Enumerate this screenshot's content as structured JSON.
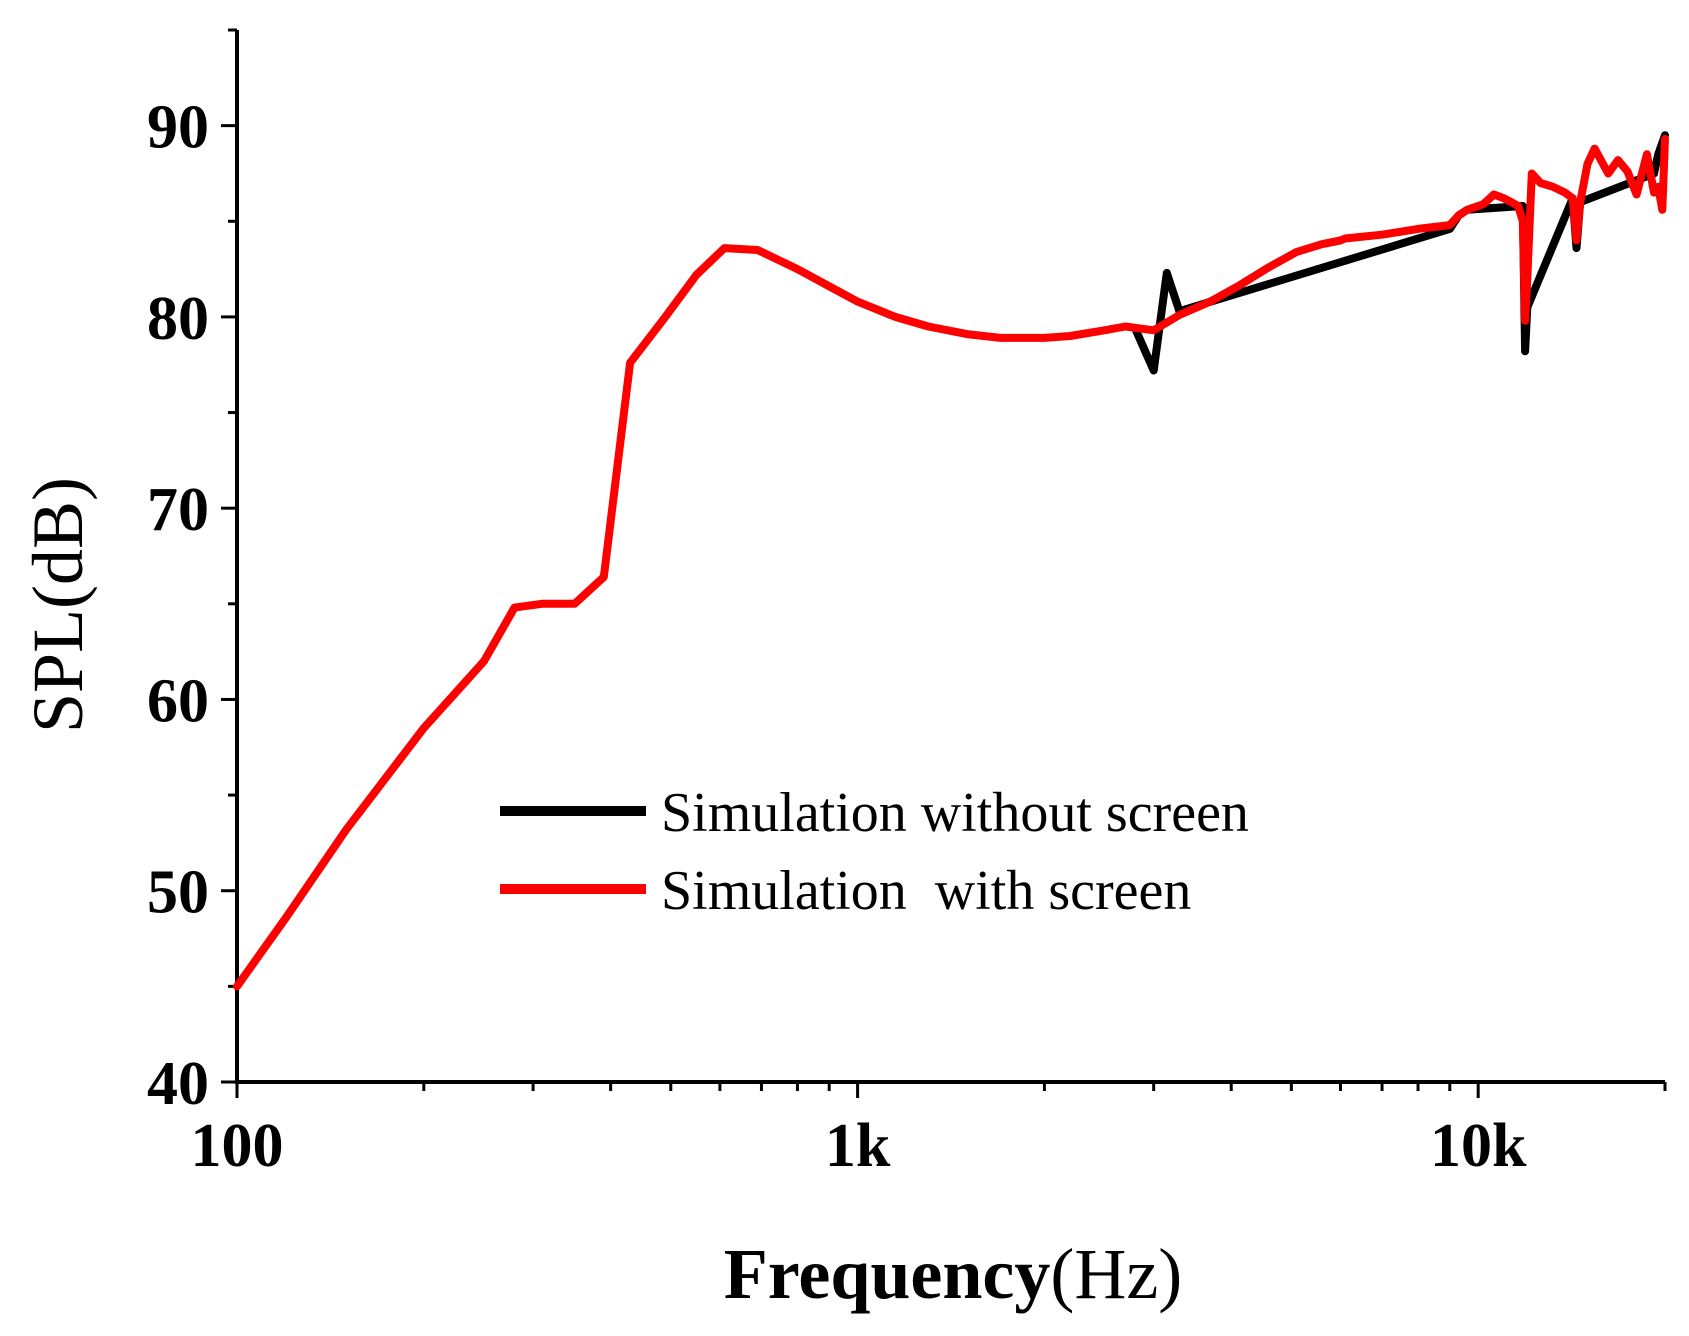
{
  "chart_data": {
    "type": "line",
    "xscale": "log",
    "xlim": [
      100,
      20000
    ],
    "ylim": [
      40,
      95
    ],
    "xlabel_bold": "Frequency",
    "xlabel_unit": "(Hz)",
    "ylabel": "SPL(dB)",
    "x_major_ticks": [
      100,
      1000,
      10000
    ],
    "x_tick_labels": [
      "100",
      "1k",
      "10k"
    ],
    "y_ticks": [
      40,
      50,
      60,
      70,
      80,
      90
    ],
    "y_tick_labels": [
      "40",
      "50",
      "60",
      "70",
      "80",
      "90"
    ],
    "legend_position": "center",
    "series": [
      {
        "name": "Simulation without screen",
        "color": "#000000",
        "x": [
          2800,
          3000,
          3150,
          3300,
          9000,
          9300,
          9600,
          11800,
          11900,
          12000,
          14200,
          14400,
          14600,
          19200,
          19500,
          20000
        ],
        "y": [
          79.4,
          77.2,
          82.3,
          80.3,
          84.6,
          85.3,
          85.6,
          85.8,
          78.2,
          80.5,
          86.2,
          83.6,
          86.0,
          87.5,
          88.5,
          89.5
        ]
      },
      {
        "name": "Simulation  with screen",
        "color": "#ff0000",
        "x": [
          100,
          120,
          150,
          200,
          250,
          280,
          310,
          350,
          390,
          430,
          490,
          550,
          610,
          690,
          800,
          900,
          1000,
          1150,
          1300,
          1500,
          1700,
          2000,
          2200,
          2500,
          2700,
          3000,
          3300,
          3700,
          4100,
          4600,
          5100,
          5600,
          6000,
          6100,
          7000,
          8000,
          9000,
          9300,
          9600,
          10200,
          10600,
          11000,
          11300,
          11600,
          11800,
          11900,
          12000,
          12200,
          12600,
          13200,
          13800,
          14200,
          14400,
          14600,
          15000,
          15400,
          16200,
          16800,
          17400,
          18000,
          18700,
          19200,
          19500,
          19800,
          20000
        ],
        "y": [
          45.0,
          48.6,
          53.2,
          58.5,
          62.0,
          64.8,
          65.0,
          65.0,
          66.4,
          77.6,
          80.0,
          82.2,
          83.6,
          83.5,
          82.5,
          81.6,
          80.8,
          80.0,
          79.5,
          79.1,
          78.9,
          78.9,
          79.0,
          79.3,
          79.5,
          79.3,
          80.1,
          80.8,
          81.6,
          82.6,
          83.4,
          83.8,
          84.0,
          84.1,
          84.3,
          84.6,
          84.8,
          85.3,
          85.6,
          85.9,
          86.4,
          86.2,
          86.0,
          85.8,
          85.0,
          79.8,
          82.0,
          87.5,
          87.0,
          86.8,
          86.5,
          86.2,
          84.0,
          86.0,
          88.0,
          88.8,
          87.5,
          88.2,
          87.6,
          86.4,
          88.5,
          86.5,
          86.8,
          85.6,
          89.3
        ]
      }
    ]
  }
}
